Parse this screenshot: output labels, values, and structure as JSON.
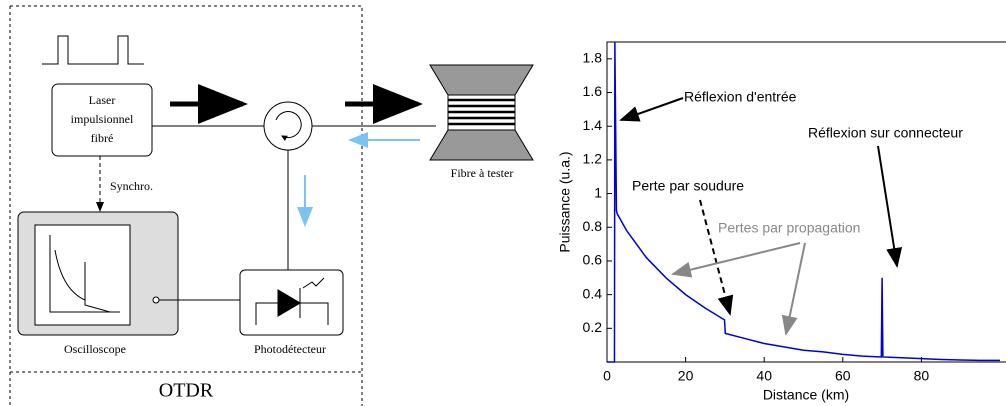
{
  "diagram": {
    "laser_label": [
      "Laser",
      "impulsionnel",
      "fibré"
    ],
    "sync_label": "Synchro.",
    "oscilloscope_label": "Oscilloscope",
    "photodetector_label": "Photodétecteur",
    "fiber_label": "Fibre à tester",
    "otdr_label": "OTDR"
  },
  "chart_data": {
    "type": "line",
    "x": [
      0,
      1.9,
      2,
      2.4,
      2.6,
      5,
      10,
      15,
      20,
      25,
      29.9,
      30.1,
      35,
      40,
      45,
      50,
      55,
      60,
      65,
      69.8,
      70,
      70.2,
      75,
      80,
      85,
      90,
      95,
      100
    ],
    "values": [
      0,
      0,
      1.9,
      0.9,
      0.88,
      0.78,
      0.62,
      0.5,
      0.4,
      0.32,
      0.25,
      0.17,
      0.14,
      0.11,
      0.09,
      0.07,
      0.06,
      0.045,
      0.035,
      0.03,
      0.5,
      0.03,
      0.025,
      0.02,
      0.015,
      0.012,
      0.01,
      0.01
    ],
    "color": "#0000dd",
    "xlim": [
      0,
      100
    ],
    "ylim": [
      0,
      1.9
    ],
    "xticks": [
      0,
      20,
      40,
      60,
      80
    ],
    "yticks": [
      0.2,
      0.4,
      0.6,
      0.8,
      1,
      1.2,
      1.4,
      1.6,
      1.8
    ],
    "xlabel": "Distance (km)",
    "ylabel": "Puissance (u.a.)",
    "annotations": [
      "Réflexion d'entrée",
      "Réflexion sur connecteur",
      "Perte par soudure",
      "Pertes par propagation"
    ]
  }
}
